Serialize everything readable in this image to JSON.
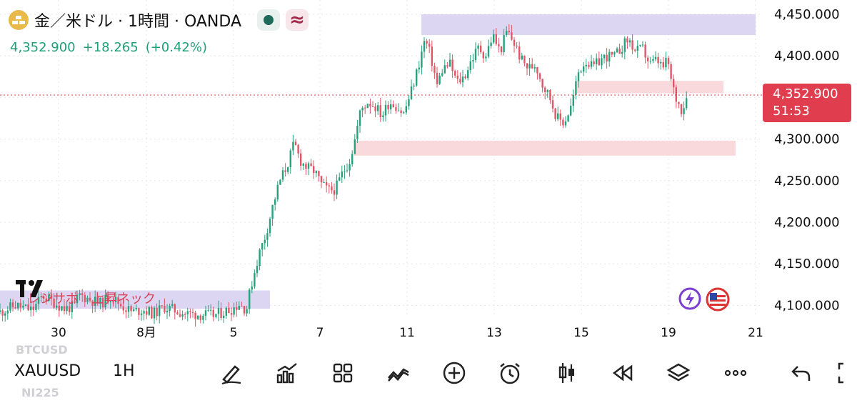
{
  "header": {
    "title": "金／米ドル · 1時間 · OANDA",
    "price": "4,352.900",
    "change": "+18.265",
    "change_pct": "(+0.42%)"
  },
  "price_axis": {
    "ticks": [
      "4,450.000",
      "4,400.000",
      "4,350.000",
      "4,300.000",
      "4,250.000",
      "4,200.000",
      "4,150.000",
      "4,100.000"
    ],
    "current_price": "4,352.900",
    "countdown": "51:53"
  },
  "time_axis": {
    "labels": [
      "30",
      "8月",
      "5",
      "7",
      "11",
      "13",
      "15",
      "19",
      "21"
    ]
  },
  "annotation": {
    "label": "レジサポ　上昇ネック"
  },
  "toolbar": {
    "symbol": "XAUUSD",
    "interval": "1H",
    "ghost_above": "BTCUSD",
    "ghost_below": "NI225",
    "tools": [
      "pen-icon",
      "chart-bars-icon",
      "grid-icon",
      "indicators-icon",
      "plus-icon",
      "alarm-icon",
      "candles-icon",
      "replay-icon",
      "layers-icon",
      "more-icon",
      "undo-icon",
      "fullscreen-icon"
    ]
  },
  "colors": {
    "up": "#26a17b",
    "down": "#e05667",
    "zone_purple": "#ddd6f3",
    "zone_pink": "#f9d9dc",
    "price_tag": "#e03e4e"
  },
  "chart_data": {
    "type": "candlestick",
    "x_labels": [
      "30",
      "8月",
      "5",
      "7",
      "11",
      "13",
      "15",
      "19",
      "21"
    ],
    "ylim": [
      4085,
      4465
    ],
    "y_ticks": [
      4100,
      4150,
      4200,
      4250,
      4300,
      4350,
      4400,
      4450
    ],
    "zones": [
      {
        "color": "purple",
        "from": 4425,
        "to": 4450
      },
      {
        "color": "pink",
        "from": 4355,
        "to": 4370
      },
      {
        "color": "pink",
        "from": 4280,
        "to": 4298
      },
      {
        "color": "purple",
        "from": 4096,
        "to": 4118
      }
    ],
    "current_price": 4352.9,
    "path_points": [
      [
        0,
        4092
      ],
      [
        22,
        4100
      ],
      [
        45,
        4094
      ],
      [
        60,
        4112
      ],
      [
        75,
        4104
      ],
      [
        90,
        4096
      ],
      [
        105,
        4099
      ],
      [
        110,
        4113
      ],
      [
        124,
        4108
      ],
      [
        140,
        4102
      ],
      [
        155,
        4111
      ],
      [
        170,
        4100
      ],
      [
        185,
        4092
      ],
      [
        200,
        4095
      ],
      [
        215,
        4090
      ],
      [
        230,
        4098
      ],
      [
        260,
        4090
      ],
      [
        300,
        4088
      ],
      [
        325,
        4096
      ],
      [
        335,
        4102
      ],
      [
        345,
        4095
      ],
      [
        352,
        4125
      ],
      [
        362,
        4160
      ],
      [
        372,
        4185
      ],
      [
        382,
        4220
      ],
      [
        392,
        4250
      ],
      [
        402,
        4268
      ],
      [
        412,
        4295
      ],
      [
        420,
        4275
      ],
      [
        430,
        4265
      ],
      [
        440,
        4262
      ],
      [
        450,
        4245
      ],
      [
        460,
        4238
      ],
      [
        470,
        4240
      ],
      [
        480,
        4260
      ],
      [
        490,
        4275
      ],
      [
        497,
        4300
      ],
      [
        505,
        4335
      ],
      [
        515,
        4345
      ],
      [
        525,
        4340
      ],
      [
        535,
        4328
      ],
      [
        545,
        4345
      ],
      [
        555,
        4340
      ],
      [
        565,
        4330
      ],
      [
        575,
        4355
      ],
      [
        585,
        4385
      ],
      [
        595,
        4420
      ],
      [
        603,
        4400
      ],
      [
        612,
        4365
      ],
      [
        620,
        4385
      ],
      [
        630,
        4390
      ],
      [
        640,
        4368
      ],
      [
        650,
        4375
      ],
      [
        660,
        4395
      ],
      [
        670,
        4410
      ],
      [
        680,
        4400
      ],
      [
        690,
        4425
      ],
      [
        700,
        4405
      ],
      [
        710,
        4430
      ],
      [
        720,
        4415
      ],
      [
        730,
        4395
      ],
      [
        740,
        4385
      ],
      [
        750,
        4390
      ],
      [
        760,
        4365
      ],
      [
        770,
        4350
      ],
      [
        780,
        4325
      ],
      [
        790,
        4320
      ],
      [
        800,
        4340
      ],
      [
        810,
        4380
      ],
      [
        820,
        4395
      ],
      [
        830,
        4385
      ],
      [
        840,
        4395
      ],
      [
        850,
        4400
      ],
      [
        860,
        4398
      ],
      [
        870,
        4410
      ],
      [
        880,
        4420
      ],
      [
        890,
        4405
      ],
      [
        900,
        4408
      ],
      [
        910,
        4390
      ],
      [
        920,
        4395
      ],
      [
        928,
        4385
      ],
      [
        935,
        4395
      ],
      [
        940,
        4368
      ],
      [
        948,
        4345
      ],
      [
        955,
        4335
      ],
      [
        962,
        4352.9
      ]
    ]
  }
}
